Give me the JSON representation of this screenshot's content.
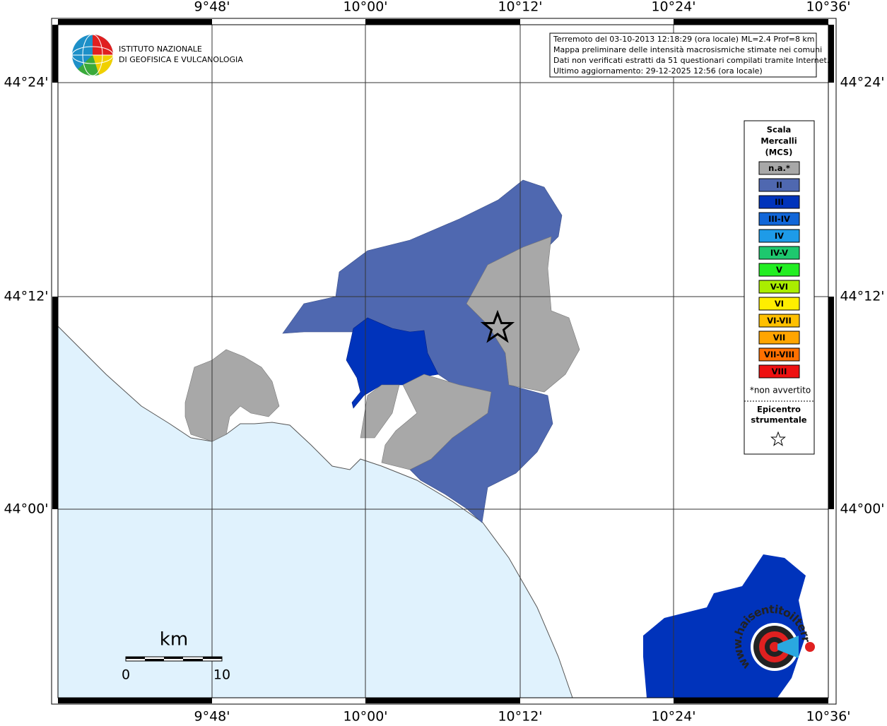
{
  "map": {
    "lon_ticks": [
      "9°48'",
      "10°00'",
      "10°12'",
      "10°24'",
      "10°36'"
    ],
    "lat_ticks": [
      "44°24'",
      "44°12'",
      "44°00'"
    ],
    "logo": [
      "ISTITUTO NAZIONALE",
      "DI GEOFISICA E VULCANOLOGIA"
    ],
    "info_lines": [
      "Terremoto del 03-10-2013 12:18:29 (ora locale) ML=2.4 Prof=8 km",
      "Mappa preliminare delle intensità macrosismiche stimate nei comuni",
      "Dati non verificati estratti da 51 questionari compilati tramite Internet.",
      "Ultimo aggiornamento: 29-12-2025 12:56 (ora locale)"
    ],
    "legend": {
      "title": [
        "Scala",
        "Mercalli",
        "(MCS)"
      ],
      "items": [
        {
          "label": "n.a.*",
          "color": "#a8a8a8",
          "label_color": "#ffffff"
        },
        {
          "label": "II",
          "color": "#4f68b0",
          "label_color": "#ffffff"
        },
        {
          "label": "III",
          "color": "#0033bb",
          "label_color": "#ffffff"
        },
        {
          "label": "III-IV",
          "color": "#1166d8",
          "label_color": "#ffffff"
        },
        {
          "label": "IV",
          "color": "#1e9be8",
          "label_color": "#ffffff"
        },
        {
          "label": "IV-V",
          "color": "#1ec86e",
          "label_color": "#000000"
        },
        {
          "label": "V",
          "color": "#22ee22",
          "label_color": "#000000"
        },
        {
          "label": "V-VI",
          "color": "#aaee00",
          "label_color": "#000000"
        },
        {
          "label": "VI",
          "color": "#ffee00",
          "label_color": "#000000"
        },
        {
          "label": "VI-VII",
          "color": "#ffc000",
          "label_color": "#000000"
        },
        {
          "label": "VII",
          "color": "#ffa500",
          "label_color": "#000000"
        },
        {
          "label": "VII-VIII",
          "color": "#ff7000",
          "label_color": "#000000"
        },
        {
          "label": "VIII",
          "color": "#ee1111",
          "label_color": "#ffffff"
        }
      ],
      "footnote": "*non avvertito",
      "epicenter": [
        "Epicentro",
        "strumentale"
      ]
    },
    "scale_bar": {
      "unit": "km",
      "start": "0",
      "end": "10"
    },
    "watermark": "www.haisentitoilterremoto.it"
  }
}
